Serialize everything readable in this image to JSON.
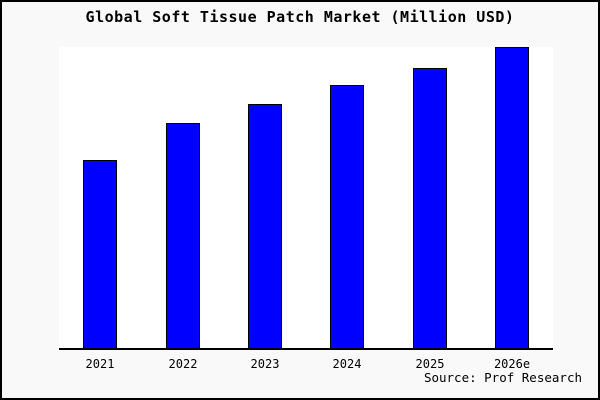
{
  "chart_data": {
    "type": "bar",
    "title": "Global Soft Tissue Patch Market (Million USD)",
    "categories": [
      "2021",
      "2022",
      "2023",
      "2024",
      "2025",
      "2026e"
    ],
    "values": [
      62.5,
      74.8,
      81.1,
      87.4,
      93.0,
      100.0
    ],
    "values_note": "No y-axis ticks or data labels are shown in the image; values are a relative index estimated from bar heights, normalized so 2026e = 100",
    "xlabel": "",
    "ylabel": "",
    "ylim": [
      0,
      100
    ],
    "grid": false,
    "legend": null,
    "y_axis_visible": false,
    "bar_color": "#0000ff",
    "bar_edge_color": "#000000",
    "source": "Source: Prof Research"
  },
  "colors": {
    "page_background": "#f9f9f9",
    "plot_background": "#ffffff",
    "frame_border": "#000000",
    "text": "#000000"
  }
}
